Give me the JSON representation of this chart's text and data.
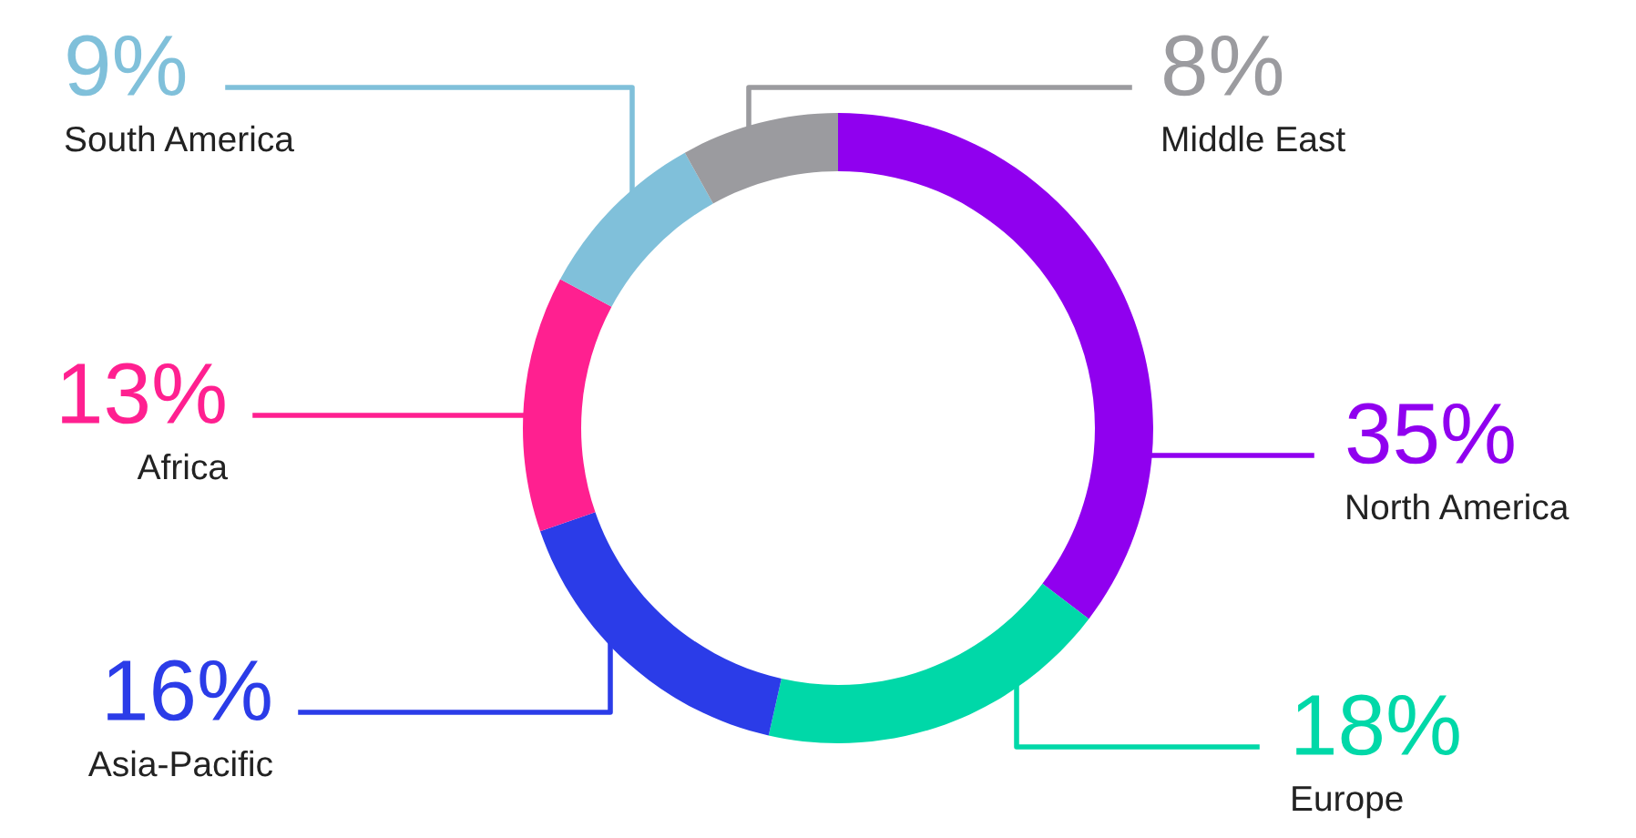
{
  "chart_data": {
    "type": "donut",
    "categories": [
      "North America",
      "Europe",
      "Asia-Pacific",
      "Africa",
      "South America",
      "Middle East"
    ],
    "values": [
      35,
      18,
      16,
      13,
      9,
      8
    ],
    "colors": [
      "#9000ef",
      "#00d8a8",
      "#2b3ce8",
      "#ff2090",
      "#80c0da",
      "#9b9b9f"
    ],
    "value_labels": [
      "35%",
      "18%",
      "16%",
      "13%",
      "9%",
      "8%"
    ],
    "legend": false
  }
}
